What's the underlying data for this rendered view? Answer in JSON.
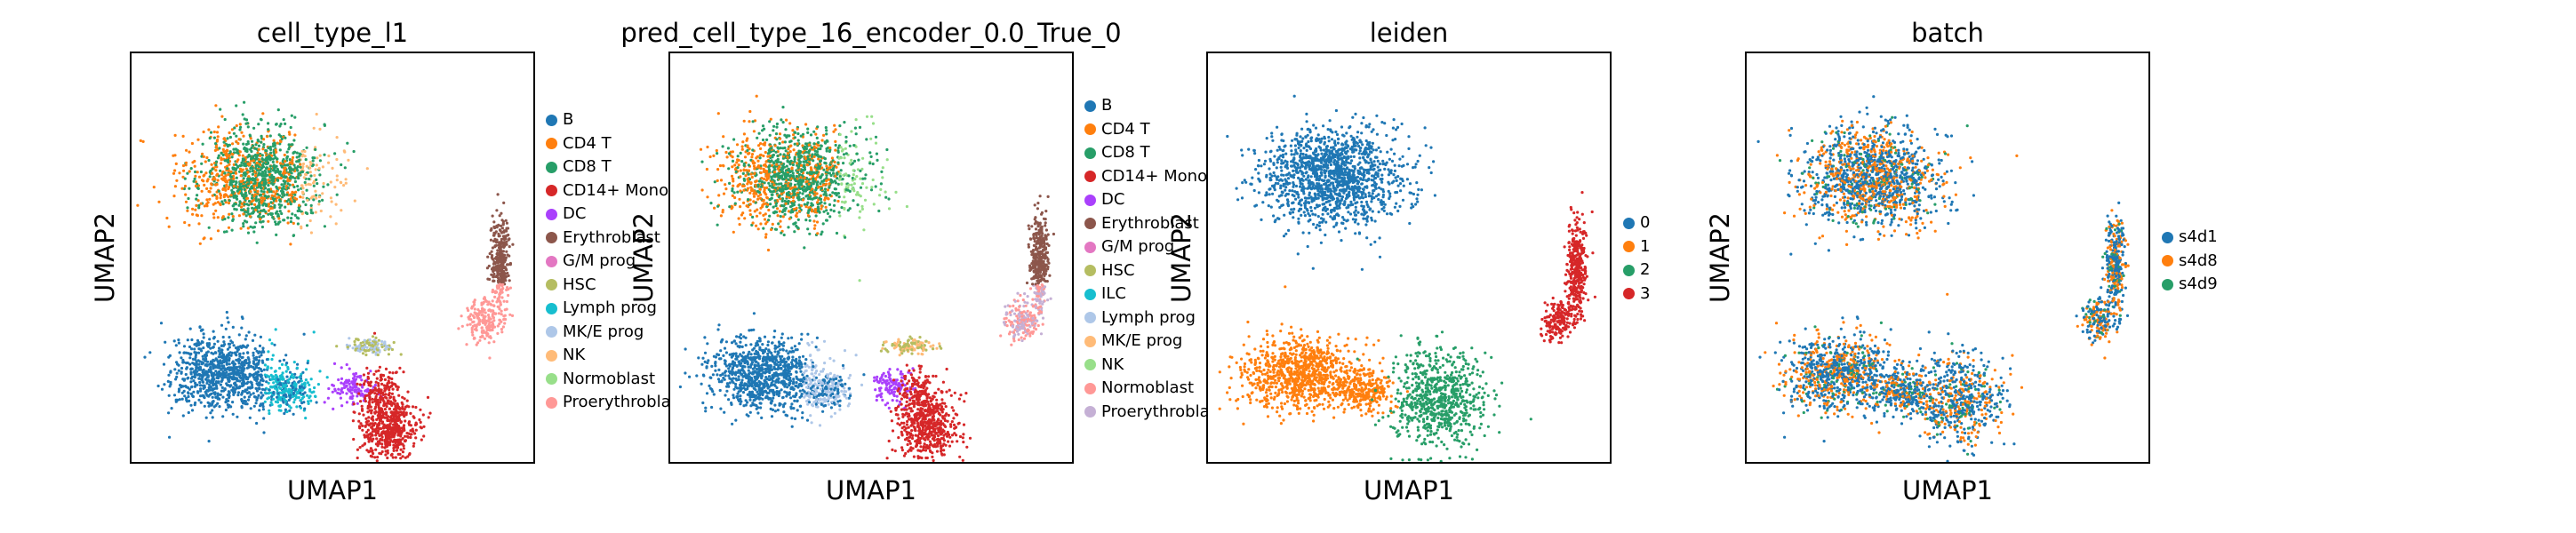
{
  "colors": {
    "palette20": [
      "#1f77b4",
      "#ff7f0e",
      "#279e68",
      "#d62728",
      "#aa40fc",
      "#8c564b",
      "#e377c2",
      "#b5bd61",
      "#17becf",
      "#aec7e8",
      "#ffbb78",
      "#98df8a",
      "#ff9896",
      "#c5b0d5"
    ]
  },
  "chart_data": [
    {
      "type": "scatter",
      "title": "cell_type_l1",
      "xlabel": "UMAP1",
      "ylabel": "UMAP2",
      "legend_position": "right",
      "grid": false,
      "categories": [
        "B",
        "CD4 T",
        "CD8 T",
        "CD14+ Mono",
        "DC",
        "Erythroblast",
        "G/M prog",
        "HSC",
        "Lymph prog",
        "MK/E prog",
        "NK",
        "Normoblast",
        "Proerythroblast"
      ],
      "category_colors": [
        "#1f77b4",
        "#ff7f0e",
        "#279e68",
        "#d62728",
        "#aa40fc",
        "#8c564b",
        "#e377c2",
        "#b5bd61",
        "#17becf",
        "#aec7e8",
        "#ffbb78",
        "#98df8a",
        "#ff9896"
      ]
    },
    {
      "type": "scatter",
      "title": "pred_cell_type_16_encoder_0.0_True_0",
      "xlabel": "UMAP1",
      "ylabel": "UMAP2",
      "legend_position": "right",
      "grid": false,
      "categories": [
        "B",
        "CD4 T",
        "CD8 T",
        "CD14+ Mono",
        "DC",
        "Erythroblast",
        "G/M prog",
        "HSC",
        "ILC",
        "Lymph prog",
        "MK/E prog",
        "NK",
        "Normoblast",
        "Proerythroblast"
      ],
      "category_colors": [
        "#1f77b4",
        "#ff7f0e",
        "#279e68",
        "#d62728",
        "#aa40fc",
        "#8c564b",
        "#e377c2",
        "#b5bd61",
        "#17becf",
        "#aec7e8",
        "#ffbb78",
        "#98df8a",
        "#ff9896",
        "#c5b0d5"
      ]
    },
    {
      "type": "scatter",
      "title": "leiden",
      "xlabel": "UMAP1",
      "ylabel": "UMAP2",
      "legend_position": "right",
      "grid": false,
      "categories": [
        "0",
        "1",
        "2",
        "3"
      ],
      "category_colors": [
        "#1f77b4",
        "#ff7f0e",
        "#279e68",
        "#d62728"
      ]
    },
    {
      "type": "scatter",
      "title": "batch",
      "xlabel": "UMAP1",
      "ylabel": "UMAP2",
      "legend_position": "right",
      "grid": false,
      "categories": [
        "s4d1",
        "s4d8",
        "s4d9"
      ],
      "category_colors": [
        "#1f77b4",
        "#ff7f0e",
        "#279e68"
      ]
    }
  ]
}
